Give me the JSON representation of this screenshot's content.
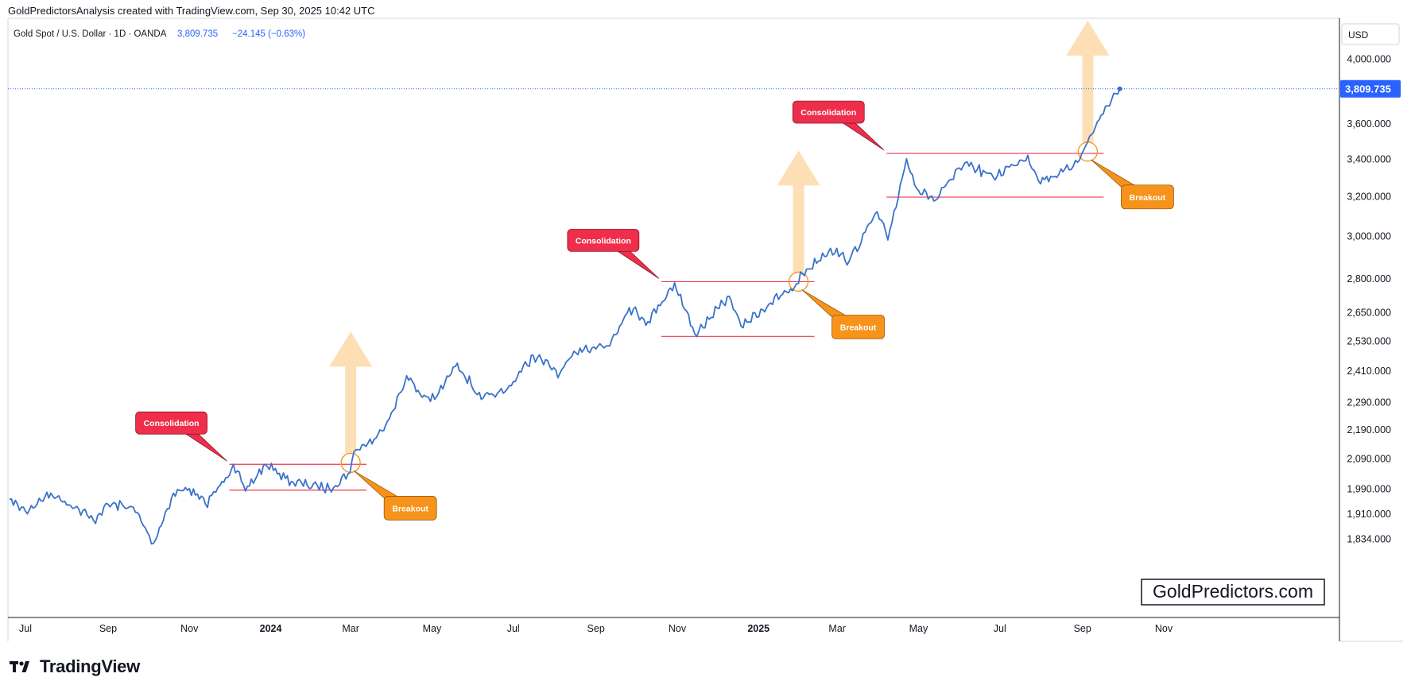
{
  "header": {
    "attribution": "GoldPredictorsAnalysis created with TradingView.com, Sep 30, 2025 10:42 UTC"
  },
  "legend": {
    "symbol": "Gold Spot / U.S. Dollar · 1D · OANDA",
    "price": "3,809.735",
    "change": "−24.145 (−0.63%)"
  },
  "currency_label": "USD",
  "last_price_label": "3,809.735",
  "watermark": "GoldPredictors.com",
  "footer": {
    "brand": "TradingView"
  },
  "colors": {
    "line": "#3a72c8",
    "consolidation": "#ee2e4b",
    "breakout": "#f7931a",
    "arrow": "#fbd9a8",
    "level": "#ee3a4f",
    "price_badge": "#2962ff"
  },
  "chart_data": {
    "type": "line",
    "series": [
      {
        "values": [
          [
            "2023-06-19",
            1955
          ],
          [
            "2023-07-01",
            1918
          ],
          [
            "2023-07-20",
            1975
          ],
          [
            "2023-08-10",
            1925
          ],
          [
            "2023-08-21",
            1890
          ],
          [
            "2023-09-01",
            1940
          ],
          [
            "2023-09-20",
            1930
          ],
          [
            "2023-10-05",
            1820
          ],
          [
            "2023-10-20",
            1975
          ],
          [
            "2023-11-01",
            1990
          ],
          [
            "2023-11-13",
            1940
          ],
          [
            "2023-11-24",
            2000
          ],
          [
            "2023-12-04",
            2070
          ],
          [
            "2023-12-13",
            1982
          ],
          [
            "2023-12-28",
            2070
          ],
          [
            "2024-01-18",
            2010
          ],
          [
            "2024-02-14",
            1990
          ],
          [
            "2024-02-28",
            2038
          ],
          [
            "2024-03-05",
            2120
          ],
          [
            "2024-03-20",
            2160
          ],
          [
            "2024-04-02",
            2260
          ],
          [
            "2024-04-12",
            2390
          ],
          [
            "2024-04-22",
            2320
          ],
          [
            "2024-05-03",
            2300
          ],
          [
            "2024-05-20",
            2440
          ],
          [
            "2024-06-07",
            2300
          ],
          [
            "2024-06-25",
            2330
          ],
          [
            "2024-07-16",
            2470
          ],
          [
            "2024-08-05",
            2400
          ],
          [
            "2024-08-20",
            2500
          ],
          [
            "2024-09-10",
            2510
          ],
          [
            "2024-09-26",
            2670
          ],
          [
            "2024-10-10",
            2610
          ],
          [
            "2024-10-30",
            2780
          ],
          [
            "2024-11-14",
            2560
          ],
          [
            "2024-11-25",
            2620
          ],
          [
            "2024-12-10",
            2720
          ],
          [
            "2024-12-19",
            2590
          ],
          [
            "2025-01-10",
            2690
          ],
          [
            "2025-01-28",
            2760
          ],
          [
            "2025-02-03",
            2820
          ],
          [
            "2025-02-24",
            2940
          ],
          [
            "2025-03-10",
            2880
          ],
          [
            "2025-03-31",
            3120
          ],
          [
            "2025-04-08",
            2980
          ],
          [
            "2025-04-22",
            3400
          ],
          [
            "2025-05-01",
            3230
          ],
          [
            "2025-05-14",
            3180
          ],
          [
            "2025-06-05",
            3380
          ],
          [
            "2025-06-26",
            3300
          ],
          [
            "2025-07-22",
            3420
          ],
          [
            "2025-07-30",
            3280
          ],
          [
            "2025-08-22",
            3340
          ],
          [
            "2025-09-02",
            3450
          ],
          [
            "2025-09-15",
            3650
          ],
          [
            "2025-09-26",
            3780
          ],
          [
            "2025-09-29",
            3809.735
          ]
        ]
      }
    ],
    "x_ticks": [
      "Jul",
      "Sep",
      "Nov",
      "2024",
      "Mar",
      "May",
      "Jul",
      "Sep",
      "Nov",
      "2025",
      "Mar",
      "May",
      "Jul",
      "Sep",
      "Nov"
    ],
    "y_ticks": [
      "4,000.000",
      "3,600.000",
      "3,400.000",
      "3,200.000",
      "3,000.000",
      "2,800.000",
      "2,650.000",
      "2,530.000",
      "2,410.000",
      "2,290.000",
      "2,190.000",
      "2,090.000",
      "1,990.000",
      "1,910.000",
      "1,834.000"
    ],
    "y_scale": "log",
    "annotations": [
      {
        "label": "Consolidation",
        "type": "consolidation",
        "range": [
          "2023-12-04",
          "2024-03-01"
        ],
        "top": 2070,
        "bottom": 1985
      },
      {
        "label": "Breakout",
        "type": "breakout",
        "at": [
          "2024-03-01",
          2075
        ]
      },
      {
        "label": "Consolidation",
        "type": "consolidation",
        "range": [
          "2024-10-23",
          "2025-01-31"
        ],
        "top": 2785,
        "bottom": 2548
      },
      {
        "label": "Breakout",
        "type": "breakout",
        "at": [
          "2025-01-31",
          2785
        ]
      },
      {
        "label": "Consolidation",
        "type": "consolidation",
        "range": [
          "2025-04-10",
          "2025-09-05"
        ],
        "top": 3430,
        "bottom": 3195
      },
      {
        "label": "Breakout",
        "type": "breakout",
        "at": [
          "2025-09-05",
          3440
        ]
      }
    ]
  }
}
